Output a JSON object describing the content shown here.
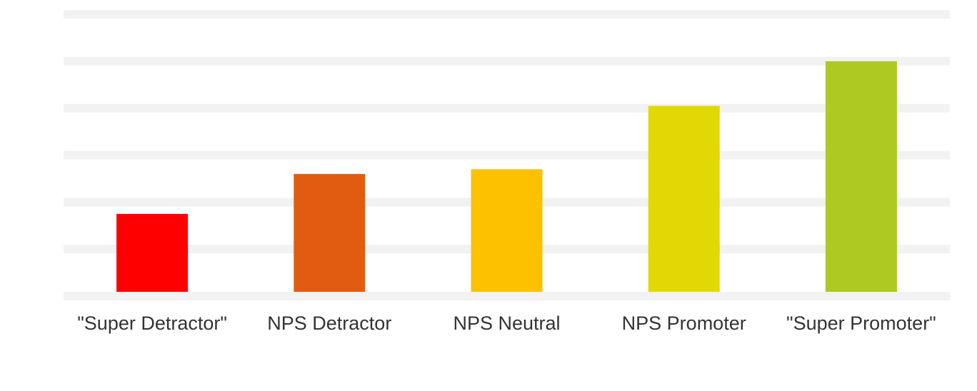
{
  "chart_data": {
    "type": "bar",
    "title": "",
    "xlabel": "",
    "ylabel": "",
    "categories": [
      "\"Super Detractor\"",
      "NPS Detractor",
      "NPS Neutral",
      "NPS Promoter",
      "\"Super Promoter\""
    ],
    "values": [
      1.75,
      2.6,
      2.7,
      4.05,
      5.0
    ],
    "ylim": [
      0,
      6
    ],
    "gridlines": [
      0,
      1,
      2,
      3,
      4,
      5,
      6
    ],
    "grid": true,
    "y_tick_labels_visible": false,
    "legend": "none",
    "colors": [
      "#ff0000",
      "#e15c10",
      "#fdc100",
      "#e2d806",
      "#aec922"
    ],
    "grid_color": "#f2f2f2"
  }
}
